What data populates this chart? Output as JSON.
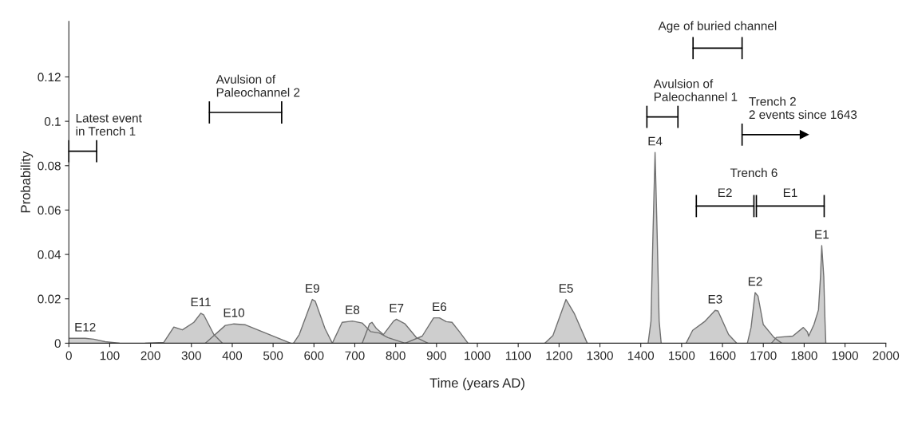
{
  "chart_data": {
    "type": "area",
    "xlabel": "Time (years AD)",
    "ylabel": "Probability",
    "xlim": [
      0,
      2000
    ],
    "xticks": [
      0,
      100,
      200,
      300,
      400,
      500,
      600,
      700,
      800,
      900,
      1000,
      1100,
      1200,
      1300,
      1400,
      1500,
      1600,
      1700,
      1800,
      1900,
      2000
    ],
    "ylim": [
      0,
      0.145
    ],
    "yticks": [
      0,
      0.02,
      0.04,
      0.06,
      0.08,
      0.1,
      0.12
    ],
    "grid": false,
    "series": [
      {
        "color": "#c6c6c6",
        "x": [
          0,
          40,
          61,
          89,
          124
        ],
        "values": [
          0.0022,
          0.0022,
          0.0018,
          0.0007,
          0
        ]
      },
      {
        "color": "#c6c6c6",
        "x": [
          187,
          232,
          257,
          278,
          306,
          323,
          330,
          355,
          376
        ],
        "values": [
          0,
          0.0003,
          0.0073,
          0.006,
          0.0094,
          0.0135,
          0.0128,
          0.0039,
          0
        ]
      },
      {
        "color": "#c6c6c6",
        "x": [
          334,
          383,
          404,
          432,
          473,
          543
        ],
        "values": [
          0,
          0.008,
          0.0087,
          0.0083,
          0.0052,
          0
        ]
      },
      {
        "color": "#c6c6c6",
        "x": [
          550,
          564,
          596,
          603,
          627,
          645
        ],
        "values": [
          0,
          0.0039,
          0.0197,
          0.019,
          0.0066,
          0
        ]
      },
      {
        "color": "#c6c6c6",
        "x": [
          645,
          669,
          694,
          718,
          739,
          760,
          781,
          823
        ],
        "values": [
          0,
          0.0094,
          0.01,
          0.0091,
          0.0052,
          0.0046,
          0.0025,
          0
        ]
      },
      {
        "color": "#c6c6c6",
        "x": [
          718,
          736,
          742,
          753,
          770,
          795,
          802,
          823,
          851,
          879
        ],
        "values": [
          0,
          0.0087,
          0.0094,
          0.0066,
          0.0039,
          0.01,
          0.0108,
          0.0087,
          0.0025,
          0
        ]
      },
      {
        "color": "#c6c6c6",
        "x": [
          823,
          865,
          893,
          907,
          924,
          938,
          956,
          977
        ],
        "values": [
          0,
          0.0032,
          0.0114,
          0.0114,
          0.0097,
          0.0094,
          0.0052,
          0
        ]
      },
      {
        "color": "#c6c6c6",
        "x": [
          1165,
          1185,
          1217,
          1237,
          1269
        ],
        "values": [
          0,
          0.0035,
          0.0197,
          0.0135,
          0
        ]
      },
      {
        "color": "#c6c6c6",
        "x": [
          1418,
          1425,
          1430,
          1435,
          1440,
          1445,
          1450
        ],
        "values": [
          0,
          0.01,
          0.05,
          0.086,
          0.05,
          0.01,
          0
        ]
      },
      {
        "color": "#c6c6c6",
        "x": [
          1511,
          1527,
          1556,
          1582,
          1589,
          1615,
          1635
        ],
        "values": [
          0,
          0.0058,
          0.0097,
          0.0148,
          0.0145,
          0.0039,
          0
        ]
      },
      {
        "color": "#c6c6c6",
        "x": [
          1661,
          1670,
          1680,
          1687,
          1700,
          1726,
          1745
        ],
        "values": [
          0,
          0.0071,
          0.0228,
          0.0212,
          0.0084,
          0.0026,
          0
        ]
      },
      {
        "color": "#c6c6c6",
        "x": [
          1720,
          1732,
          1772,
          1798,
          1808,
          1811,
          1824,
          1835,
          1840,
          1843,
          1848,
          1851,
          1853
        ],
        "values": [
          0,
          0.0026,
          0.0032,
          0.0071,
          0.0051,
          0.0032,
          0.0084,
          0.015,
          0.03,
          0.044,
          0.03,
          0.01,
          0
        ]
      },
      {
        "type": "line",
        "color": "#000000",
        "x": [
          0,
          34,
          68
        ],
        "values": [
          0.0865,
          0.0865,
          0.0865
        ]
      },
      {
        "type": "line",
        "color": "#000000",
        "x": [
          344,
          432,
          521
        ],
        "values": [
          0.104,
          0.104,
          0.104
        ]
      },
      {
        "type": "line",
        "color": "#000000",
        "x": [
          1528,
          1588,
          1648
        ],
        "values": [
          0.133,
          0.133,
          0.133
        ]
      },
      {
        "type": "line",
        "color": "#000000",
        "x": [
          1415,
          1453,
          1491
        ],
        "values": [
          0.102,
          0.102,
          0.102
        ]
      },
      {
        "type": "line",
        "color": "#000000",
        "x": [
          1536,
          1606,
          1677
        ],
        "values": [
          0.0618,
          0.0618,
          0.0618
        ]
      },
      {
        "type": "line",
        "color": "#000000",
        "x": [
          1683,
          1766,
          1849
        ],
        "values": [
          0.0618,
          0.0618,
          0.0618
        ]
      },
      {
        "type": "line",
        "color": "#000000",
        "marker": "triangle",
        "x": [
          1648,
          1800
        ],
        "values": [
          0.094,
          0.094
        ]
      }
    ],
    "annotations": [
      {
        "text": "E12",
        "x": 40,
        "y": 0.0022
      },
      {
        "text": "E11",
        "x": 323,
        "y": 0.0135
      },
      {
        "text": "E10",
        "x": 404,
        "y": 0.0087
      },
      {
        "text": "E9",
        "x": 596,
        "y": 0.0197
      },
      {
        "text": "E8",
        "x": 694,
        "y": 0.01
      },
      {
        "text": "E7",
        "x": 802,
        "y": 0.0108
      },
      {
        "text": "E6",
        "x": 907,
        "y": 0.0114
      },
      {
        "text": "E5",
        "x": 1217,
        "y": 0.0197
      },
      {
        "text": "E4",
        "x": 1435,
        "y": 0.086
      },
      {
        "text": "E3",
        "x": 1582,
        "y": 0.0148
      },
      {
        "text": "E2",
        "x": 1680,
        "y": 0.0228
      },
      {
        "text": "E1",
        "x": 1843,
        "y": 0.044
      },
      {
        "text": "Latest event\nin Trench 1",
        "x": 0,
        "y": 0.0865
      },
      {
        "text": "Avulsion of\nPaleochannel 2",
        "x": 344,
        "y": 0.104
      },
      {
        "text": "Age of buried channel",
        "x": 1588,
        "y": 0.133
      },
      {
        "text": "Avulsion of\nPaleochannel 1",
        "x": 1415,
        "y": 0.102
      },
      {
        "text": "Trench 2\n2 events since 1643",
        "x": 1648,
        "y": 0.094
      },
      {
        "text": "Trench 6",
        "x": 1677,
        "y": 0.0618
      },
      {
        "text": "E2",
        "x": 1606,
        "y": 0.0618
      },
      {
        "text": "E1",
        "x": 1766,
        "y": 0.0618
      }
    ]
  }
}
